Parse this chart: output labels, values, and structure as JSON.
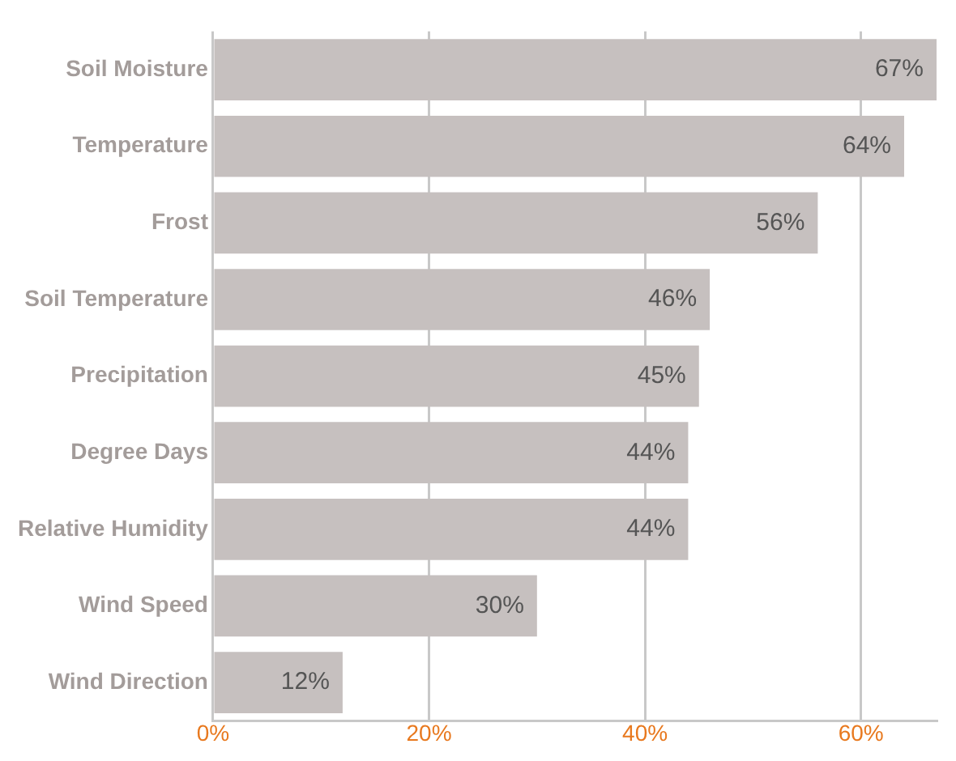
{
  "chart_data": {
    "type": "bar",
    "orientation": "horizontal",
    "categories": [
      "Soil Moisture",
      "Temperature",
      "Frost",
      "Soil Temperature",
      "Precipitation",
      "Degree Days",
      "Relative Humidity",
      "Wind Speed",
      "Wind Direction"
    ],
    "values": [
      67,
      64,
      56,
      46,
      45,
      44,
      44,
      30,
      12
    ],
    "value_labels": [
      "67%",
      "64%",
      "56%",
      "46%",
      "45%",
      "44%",
      "44%",
      "30%",
      "12%"
    ],
    "color": "#c6c0bf",
    "xlim": [
      0,
      67
    ],
    "xticks": [
      {
        "value": 0,
        "label": "0%"
      },
      {
        "value": 20,
        "label": "20%"
      },
      {
        "value": 40,
        "label": "40%"
      },
      {
        "value": 60,
        "label": "60%"
      }
    ],
    "grid": "x",
    "legend": false
  }
}
